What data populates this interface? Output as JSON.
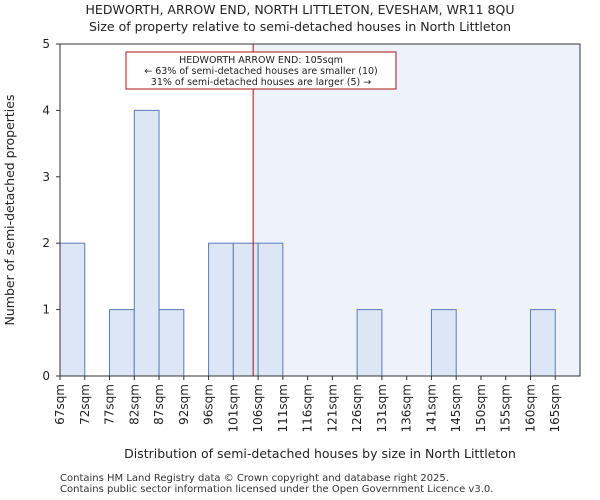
{
  "title": "HEDWORTH, ARROW END, NORTH LITTLETON, EVESHAM, WR11 8QU",
  "subtitle": "Size of property relative to semi-detached houses in North Littleton",
  "footer": {
    "line1": "Contains HM Land Registry data © Crown copyright and database right 2025.",
    "line2": "Contains public sector information licensed under the Open Government Licence v3.0."
  },
  "chart_data": {
    "type": "bar",
    "title": "HEDWORTH, ARROW END, NORTH LITTLETON, EVESHAM, WR11 8QU",
    "subtitle": "Size of property relative to semi-detached houses in North Littleton",
    "xlabel": "Distribution of semi-detached houses by size in North Littleton",
    "ylabel": "Number of semi-detached properties",
    "categories": [
      "67sqm",
      "72sqm",
      "77sqm",
      "82sqm",
      "87sqm",
      "92sqm",
      "96sqm",
      "101sqm",
      "106sqm",
      "111sqm",
      "116sqm",
      "121sqm",
      "126sqm",
      "131sqm",
      "136sqm",
      "141sqm",
      "145sqm",
      "150sqm",
      "155sqm",
      "160sqm",
      "165sqm"
    ],
    "values": [
      2,
      0,
      1,
      4,
      1,
      0,
      2,
      2,
      2,
      0,
      0,
      0,
      1,
      0,
      0,
      1,
      0,
      0,
      0,
      1,
      0
    ],
    "ylim": [
      0,
      5
    ],
    "yticks": [
      0,
      1,
      2,
      3,
      4,
      5
    ],
    "grid": false,
    "marker": {
      "value_sqm": 105,
      "label_lines": [
        "HEDWORTH ARROW END: 105sqm",
        "← 63% of semi-detached houses are smaller (10)",
        "31% of semi-detached houses are larger (5) →"
      ]
    },
    "colors": {
      "bar_fill": "#dce6f4",
      "bar_stroke": "#5b7db8",
      "shade": "#eef2fa",
      "marker_line": "#aa1111",
      "annotation_border": "#aa1111"
    }
  }
}
